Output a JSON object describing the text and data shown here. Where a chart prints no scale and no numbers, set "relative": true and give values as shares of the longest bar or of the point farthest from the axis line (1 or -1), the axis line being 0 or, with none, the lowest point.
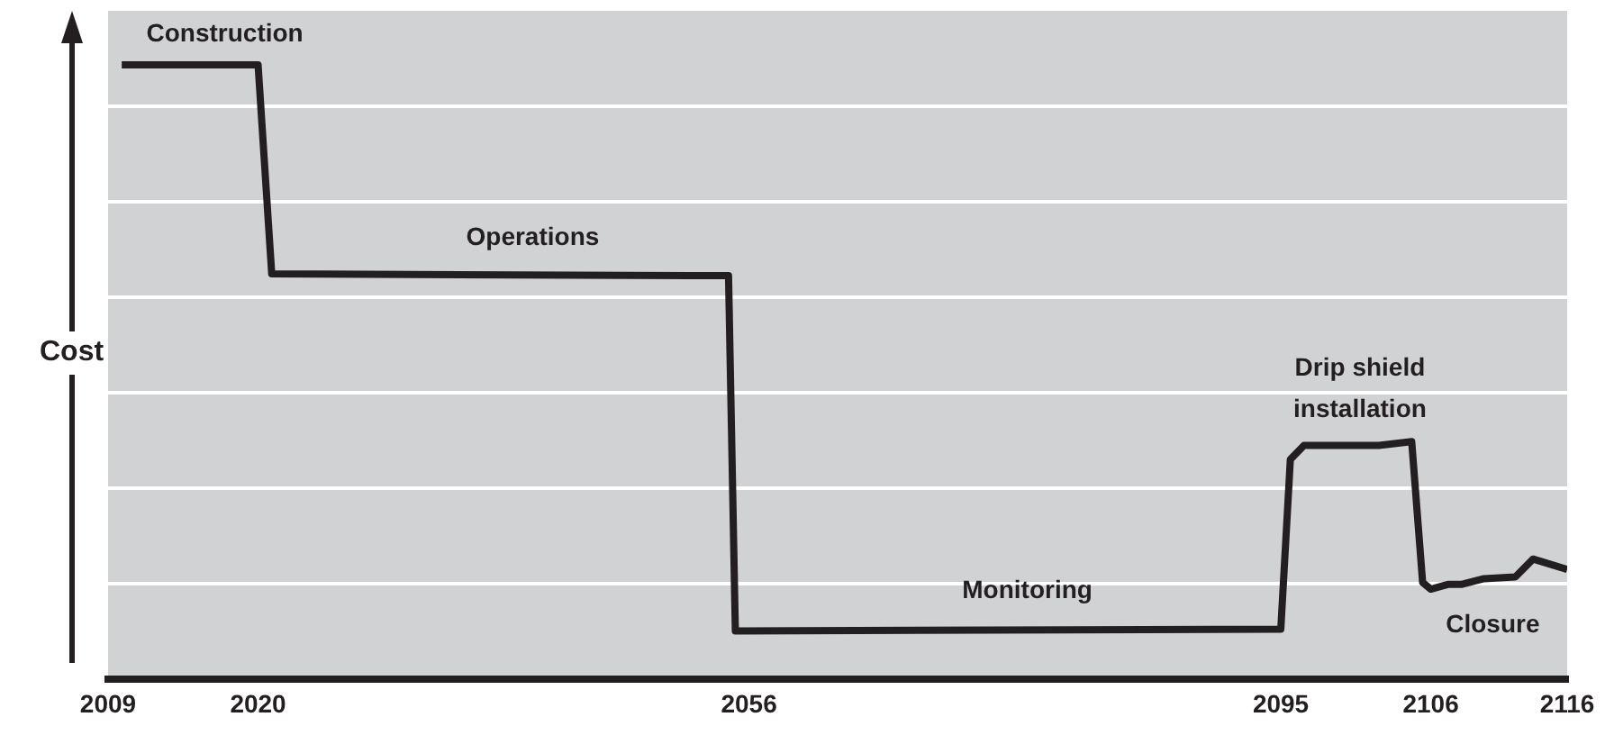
{
  "chart_data": {
    "type": "line",
    "ylabel": "Cost",
    "relative": true,
    "grid": "y",
    "legend": false,
    "marker": "none",
    "line_style": "solid",
    "xlim": [
      2009,
      2116
    ],
    "xticks": [
      2009,
      2020,
      2056,
      2095,
      2106,
      2116
    ],
    "series": [
      {
        "color": "#231f20",
        "x": [
          2010,
          2020,
          2021,
          2054.5,
          2055,
          2095,
          2095.7,
          2096.7,
          2102.2,
          2104.6,
          2105.4,
          2106,
          2107.3,
          2108.3,
          2109.9,
          2112.2,
          2113.5,
          2116
        ],
        "values": [
          1,
          1,
          0.66,
          0.657,
          0.079,
          0.082,
          0.358,
          0.381,
          0.381,
          0.387,
          0.158,
          0.147,
          0.155,
          0.155,
          0.164,
          0.167,
          0.196,
          0.179
        ]
      }
    ],
    "annotations": [
      "Construction",
      "Operations",
      "Monitoring",
      "Drip shield\ninstallation",
      "Closure"
    ]
  }
}
